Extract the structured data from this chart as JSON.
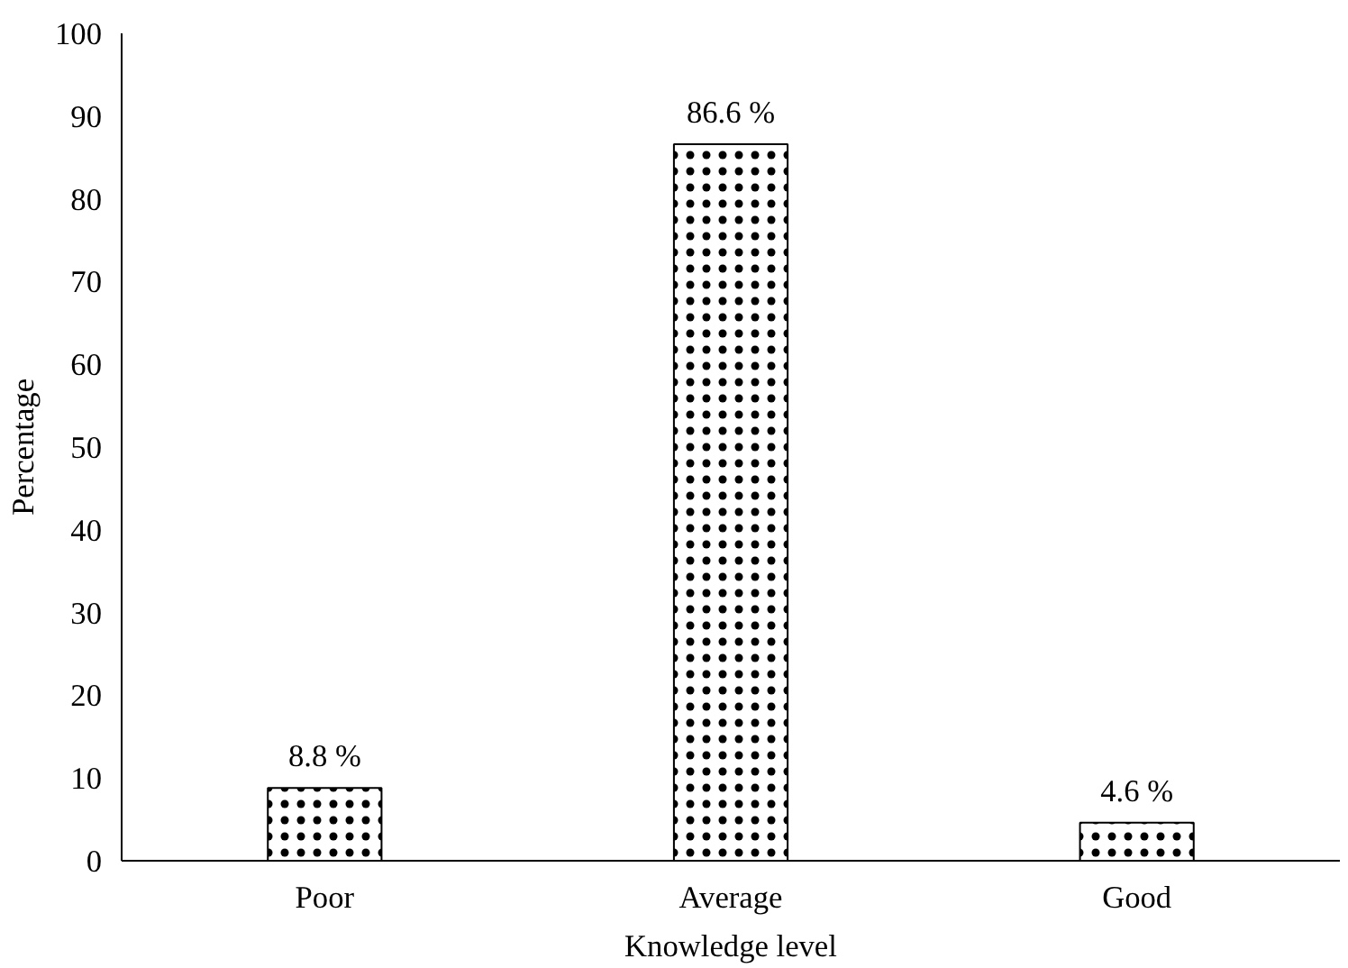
{
  "chart_data": {
    "type": "bar",
    "xlabel": "Knowledge level",
    "ylabel": "Percentage",
    "categories": [
      "Poor",
      "Average",
      "Good"
    ],
    "values": [
      8.8,
      86.6,
      4.6
    ],
    "value_labels": [
      "8.8 %",
      "86.6 %",
      "4.6 %"
    ],
    "color": "#ffffff",
    "ylim": [
      0,
      100
    ],
    "yticks": [
      0,
      10,
      20,
      30,
      40,
      50,
      60,
      70,
      80,
      90,
      100
    ],
    "grid": false
  }
}
